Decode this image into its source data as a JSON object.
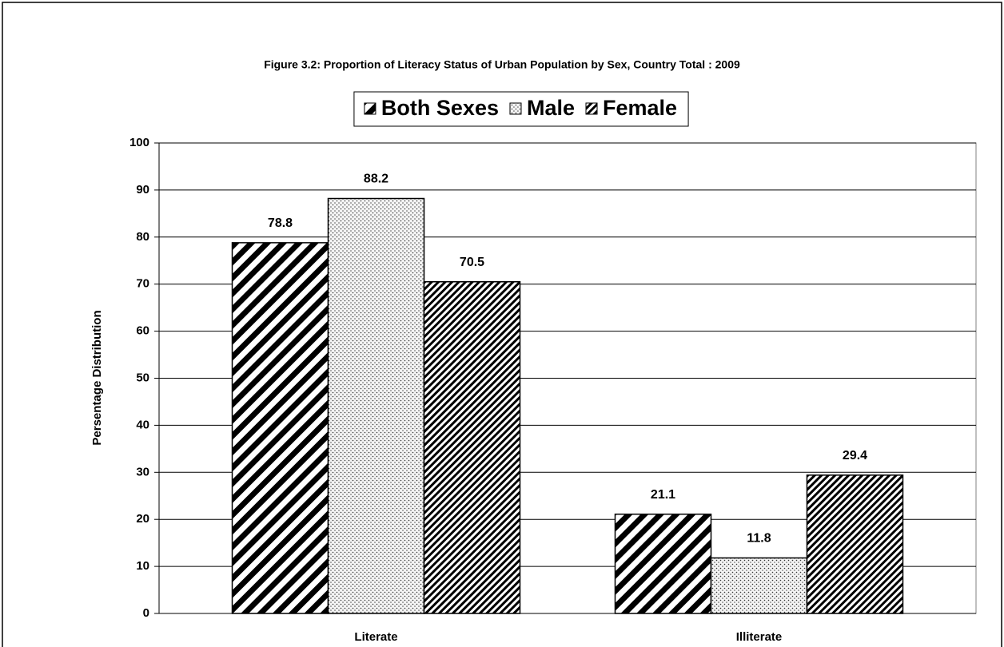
{
  "chart_data": {
    "type": "bar",
    "title": "Figure 3.2:  Proportion of Literacy Status of Urban Population by Sex, Country Total : 2009",
    "y_label": "Persentage Distribution",
    "categories": [
      "Literate",
      "Illiterate"
    ],
    "series": [
      {
        "name": "Both Sexes",
        "color": "#000000",
        "pattern": "wide-stripes",
        "values": [
          78.8,
          21.1
        ]
      },
      {
        "name": "Male",
        "color": "#000000",
        "pattern": "dots",
        "values": [
          88.2,
          11.8
        ]
      },
      {
        "name": "Female",
        "color": "#000000",
        "pattern": "narrow-stripes",
        "values": [
          70.5,
          29.4
        ]
      }
    ],
    "ylim": [
      0,
      100
    ],
    "yticks": [
      0,
      10,
      20,
      30,
      40,
      50,
      60,
      70,
      80,
      90,
      100
    ],
    "grid": true,
    "legend": "top"
  }
}
